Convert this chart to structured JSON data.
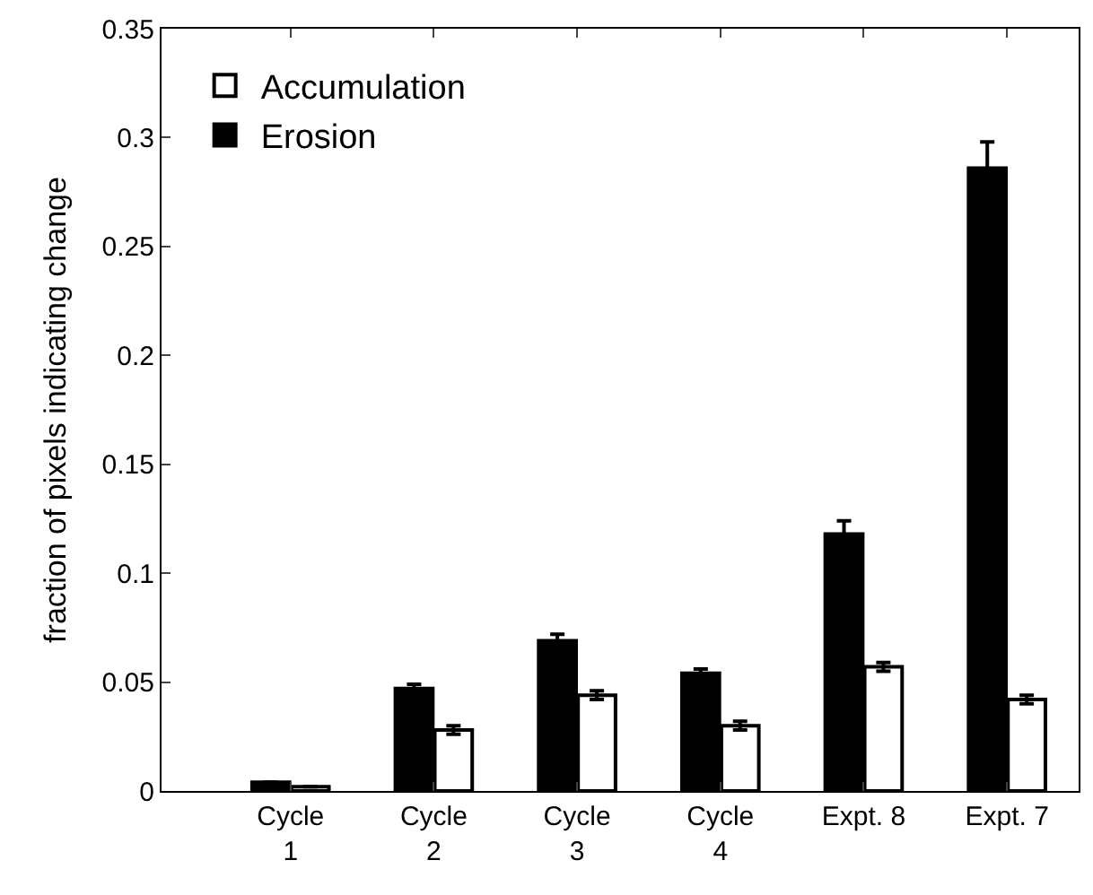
{
  "chart_data": {
    "type": "bar",
    "ylabel": "fraction of pixels indicating change",
    "categories": [
      "Cycle\n1",
      "Cycle\n2",
      "Cycle\n3",
      "Cycle\n4",
      "Expt. 8",
      "Expt. 7"
    ],
    "series": [
      {
        "name": "Erosion",
        "color": "#000000",
        "values": [
          0.004,
          0.047,
          0.069,
          0.054,
          0.118,
          0.286
        ],
        "errors": [
          null,
          0.002,
          0.003,
          0.002,
          0.006,
          0.012
        ]
      },
      {
        "name": "Accumulation",
        "color": "#ffffff",
        "values": [
          0.002,
          0.028,
          0.044,
          0.03,
          0.057,
          0.042
        ],
        "errors": [
          null,
          0.002,
          0.002,
          0.002,
          0.002,
          0.002
        ]
      }
    ],
    "ylim": [
      0,
      0.35
    ],
    "yticks": [
      0,
      0.05,
      0.1,
      0.15,
      0.2,
      0.25,
      0.3,
      0.35
    ],
    "grid": false,
    "legend": "top left"
  }
}
